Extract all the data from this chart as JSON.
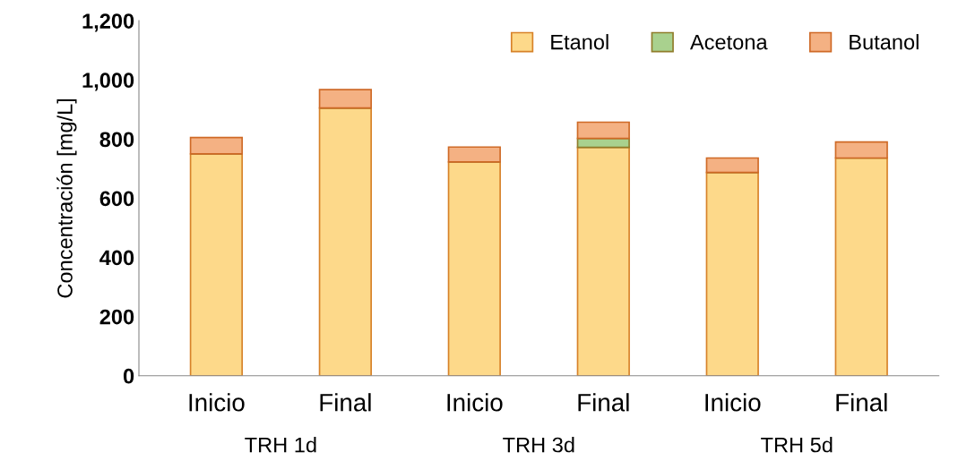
{
  "chart_data": {
    "type": "bar",
    "stacked": true,
    "ylabel": "Concentración [mg/L]",
    "categories": [
      "Inicio",
      "Final",
      "Inicio",
      "Final",
      "Inicio",
      "Final"
    ],
    "annotations": [
      "TRH 1d",
      "TRH 3d",
      "TRH 5d"
    ],
    "series": [
      {
        "name": "Etanol",
        "color": "#fdd98a",
        "values": [
          750,
          905,
          723,
          772,
          687,
          736
        ]
      },
      {
        "name": "Acetona",
        "color": "#a9d18e",
        "values": [
          0,
          0,
          0,
          30,
          0,
          0
        ]
      },
      {
        "name": "Butanol",
        "color": "#f4b183",
        "values": [
          55,
          62,
          50,
          55,
          49,
          54
        ]
      }
    ],
    "ylim": [
      0,
      1200
    ],
    "yticks": [
      0,
      200,
      400,
      600,
      800,
      {
        "value": 1000,
        "label": "1,000"
      },
      {
        "value": 1200,
        "label": "1,200"
      }
    ],
    "grid": false,
    "legend": "top right"
  }
}
